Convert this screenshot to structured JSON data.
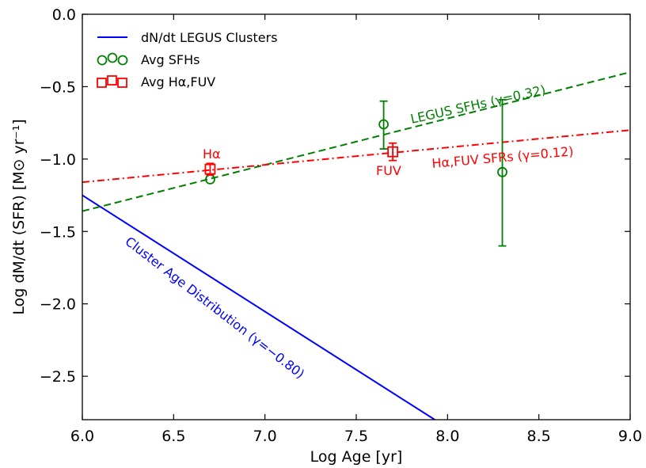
{
  "chart_data": {
    "type": "line",
    "xlabel": "Log Age [yr]",
    "ylabel": "Log dM/dt (SFR) [M⊙ yr⁻¹]",
    "xlim": [
      6.0,
      9.0
    ],
    "ylim": [
      -2.8,
      0.0
    ],
    "x_ticks": [
      "6.0",
      "6.5",
      "7.0",
      "7.5",
      "8.0",
      "8.5",
      "9.0"
    ],
    "y_ticks": [
      "0.0",
      "−0.5",
      "−1.0",
      "−1.5",
      "−2.0",
      "−2.5"
    ],
    "grid": false,
    "legend_position": "top-left",
    "legend": {
      "clusters": "dN/dt LEGUS Clusters",
      "sfh": "Avg SFHs",
      "halpha_fuv": "Avg Hα,FUV"
    },
    "series": [
      {
        "name": "dN/dt LEGUS Clusters",
        "style": "solid",
        "color": "#0000ff",
        "x": [
          6.0,
          7.93
        ],
        "y": [
          -1.25,
          -2.8
        ]
      },
      {
        "style": "dashed",
        "color": "#008000",
        "x": [
          6.0,
          9.0
        ],
        "y": [
          -1.36,
          -0.4
        ]
      },
      {
        "style": "dashdot",
        "color": "#ff0000",
        "x": [
          6.0,
          9.0
        ],
        "y": [
          -1.16,
          -0.8
        ]
      }
    ],
    "points": {
      "sfh": {
        "name": "Avg SFHs",
        "color": "#008000",
        "marker": "circle",
        "x": [
          6.7,
          7.65,
          8.3
        ],
        "y": [
          -1.14,
          -0.76,
          -1.09
        ],
        "err_low": [
          0.0,
          0.17,
          0.51
        ],
        "err_high": [
          0.0,
          0.16,
          0.5
        ]
      },
      "halpha_fuv": {
        "name": "Avg Hα,FUV",
        "color": "#ff0000",
        "marker": "square",
        "x": [
          6.7,
          7.7
        ],
        "y": [
          -1.07,
          -0.95
        ],
        "err_low": [
          0.04,
          0.06
        ],
        "err_high": [
          0.04,
          0.06
        ]
      }
    },
    "annotations": {
      "legus_sfh": "LEGUS SFHs (γ=0.32)",
      "ha_fuv": "Hα,FUV SFRs (γ=0.12)",
      "cluster_age": "Cluster Age Distribution (γ=−0.80)",
      "halpha": "Hα",
      "fuv": "FUV"
    },
    "colors": {
      "blue": "#0000ff",
      "green": "#008000",
      "red": "#ff0000"
    }
  }
}
